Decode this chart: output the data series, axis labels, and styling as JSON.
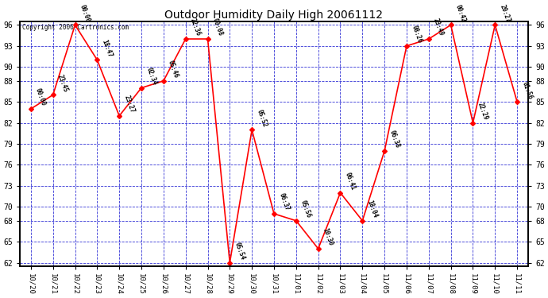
{
  "title": "Outdoor Humidity Daily High 20061112",
  "copyright_text": "Copyright 2006 Cartronics.com",
  "x_labels": [
    "10/20",
    "10/21",
    "10/22",
    "10/23",
    "10/24",
    "10/25",
    "10/26",
    "10/27",
    "10/28",
    "10/29",
    "10/30",
    "10/31",
    "11/01",
    "11/02",
    "11/03",
    "11/04",
    "11/05",
    "11/06",
    "11/07",
    "11/08",
    "11/09",
    "11/10",
    "11/11"
  ],
  "y_values": [
    84,
    86,
    96,
    91,
    83,
    87,
    88,
    94,
    94,
    62,
    81,
    69,
    68,
    64,
    72,
    68,
    78,
    93,
    94,
    96,
    82,
    96,
    85
  ],
  "time_labels": [
    "00:00",
    "23:45",
    "00:00",
    "18:47",
    "23:27",
    "02:34",
    "05:46",
    "22:36",
    "00:08",
    "05:54",
    "05:52",
    "06:37",
    "05:56",
    "10:30",
    "06:41",
    "18:04",
    "06:38",
    "08:26",
    "23:49",
    "00:42",
    "22:29",
    "20:27",
    "01:56"
  ],
  "line_color": "red",
  "bg_color": "white",
  "grid_color": "#0000cc",
  "y_min": 62,
  "y_max": 96,
  "y_ticks": [
    62,
    65,
    68,
    70,
    73,
    76,
    79,
    82,
    85,
    88,
    90,
    93,
    96
  ]
}
